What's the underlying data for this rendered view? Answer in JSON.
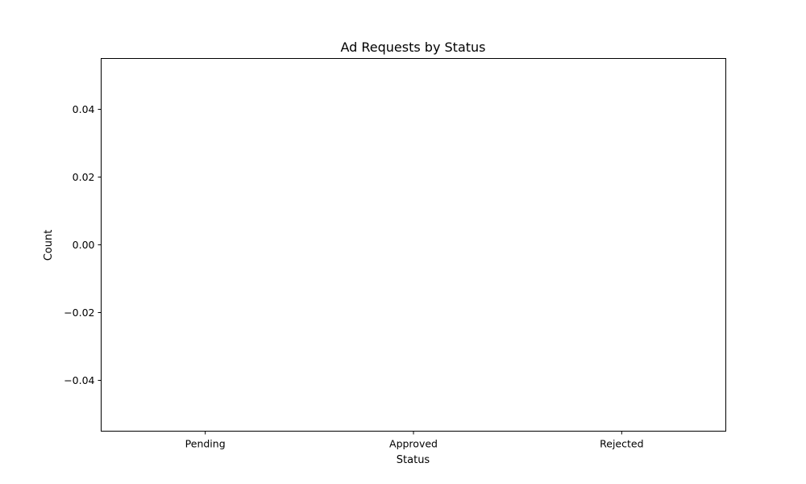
{
  "chart_data": {
    "type": "bar",
    "title": "Ad Requests by Status",
    "xlabel": "Status",
    "ylabel": "Count",
    "categories": [
      "Pending",
      "Approved",
      "Rejected"
    ],
    "values": [
      0,
      0,
      0
    ],
    "ylim": [
      -0.055,
      0.055
    ],
    "yticks": [
      0.04,
      0.02,
      0.0,
      -0.02,
      -0.04
    ],
    "ytick_labels": [
      "0.04",
      "0.02",
      "0.00",
      "−0.02",
      "−0.04"
    ],
    "grid": false,
    "legend": "none"
  }
}
